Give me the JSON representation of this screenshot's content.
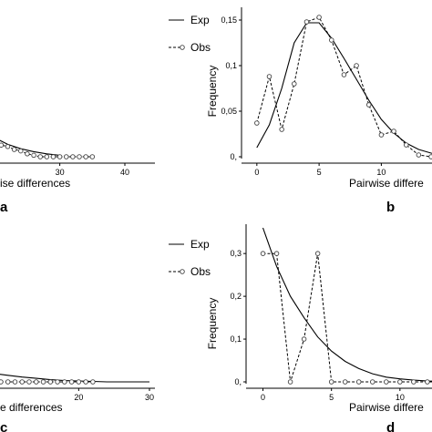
{
  "chart_data": [
    {
      "id": "a",
      "type": "line",
      "panel_label": "a",
      "xlabel": "Pairwise differences",
      "ylabel": "",
      "xticks": [
        {
          "v": 20,
          "label": "20"
        },
        {
          "v": 30,
          "label": "30"
        },
        {
          "v": 40,
          "label": "40"
        }
      ],
      "yticks": [],
      "xlim": [
        -3,
        40
      ],
      "ylim": [
        0,
        0.1
      ],
      "legend": [
        "Exp",
        "Obs"
      ],
      "series": [
        {
          "name": "Exp",
          "style": "solid",
          "x": [
            0,
            2,
            4,
            6,
            8,
            10,
            12,
            14,
            16,
            18,
            20,
            22,
            24,
            26,
            28,
            30
          ],
          "y": [
            0.1,
            0.087,
            0.075,
            0.064,
            0.054,
            0.045,
            0.037,
            0.03,
            0.024,
            0.018,
            0.013,
            0.0085,
            0.0055,
            0.0035,
            0.002,
            0.001
          ]
        },
        {
          "name": "Obs",
          "style": "dashed",
          "x": [
            14,
            15,
            16,
            17,
            18,
            19,
            20,
            21,
            22,
            23,
            24,
            25,
            26,
            27,
            28,
            29,
            30,
            31,
            32,
            33,
            34,
            35
          ],
          "y": [
            0.058,
            0.05,
            0.041,
            0.043,
            0.034,
            0.026,
            0.01,
            0.008,
            0.007,
            0.005,
            0.004,
            0.002,
            0.001,
            0,
            0,
            0,
            0,
            0,
            0,
            0,
            0,
            0
          ]
        }
      ]
    },
    {
      "id": "b",
      "type": "line",
      "panel_label": "b",
      "xlabel": "Pairwise differences",
      "ylabel": "Frequency",
      "xticks": [
        {
          "v": 0,
          "label": "0"
        },
        {
          "v": 5,
          "label": "5"
        },
        {
          "v": 10,
          "label": "10"
        }
      ],
      "yticks": [
        {
          "v": 0,
          "label": "0,"
        },
        {
          "v": 0.05,
          "label": "0,05"
        },
        {
          "v": 0.1,
          "label": "0,1"
        },
        {
          "v": 0.15,
          "label": "0,15"
        }
      ],
      "xlim": [
        -0.5,
        17
      ],
      "ylim": [
        0,
        0.16
      ],
      "legend": [],
      "series": [
        {
          "name": "Exp",
          "style": "solid",
          "x": [
            0,
            1,
            2,
            3,
            4,
            5,
            6,
            7,
            8,
            9,
            10,
            11,
            12,
            13,
            14,
            15,
            16
          ],
          "y": [
            0.01,
            0.035,
            0.075,
            0.125,
            0.147,
            0.147,
            0.13,
            0.108,
            0.085,
            0.062,
            0.041,
            0.026,
            0.015,
            0.008,
            0.004,
            0.002,
            0.001
          ]
        },
        {
          "name": "Obs",
          "style": "dashed",
          "x": [
            0,
            1,
            2,
            3,
            4,
            5,
            6,
            7,
            8,
            9,
            10,
            11,
            12,
            13,
            14,
            15,
            16
          ],
          "y": [
            0.037,
            0.088,
            0.03,
            0.08,
            0.148,
            0.153,
            0.128,
            0.09,
            0.1,
            0.057,
            0.024,
            0.028,
            0.013,
            0.002,
            0,
            0,
            0
          ]
        }
      ]
    },
    {
      "id": "c",
      "type": "line",
      "panel_label": "c",
      "xlabel": "Pairwise differences",
      "ylabel": "",
      "xticks": [
        {
          "v": 20,
          "label": "20"
        },
        {
          "v": 30,
          "label": "30"
        }
      ],
      "yticks": [],
      "xlim": [
        -4,
        30
      ],
      "ylim": [
        0,
        0.35
      ],
      "legend": [
        "Exp",
        "Obs"
      ],
      "series": [
        {
          "name": "Exp",
          "style": "solid",
          "x": [
            0,
            2,
            4,
            6,
            8,
            10,
            12,
            14,
            16,
            18,
            20,
            22,
            24,
            26,
            28,
            30
          ],
          "y": [
            0.05,
            0.04,
            0.032,
            0.025,
            0.019,
            0.015,
            0.011,
            0.008,
            0.005,
            0.003,
            0.002,
            0.001,
            0,
            0,
            0,
            0
          ]
        },
        {
          "name": "Obs",
          "style": "dashed",
          "x": [
            0,
            1,
            2,
            3,
            4,
            5,
            6,
            7,
            8,
            9,
            10,
            11,
            12,
            13,
            14,
            15,
            16,
            17,
            18,
            19,
            20,
            21,
            22
          ],
          "y": [
            0.085,
            0.095,
            0.11,
            0.09,
            0.07,
            0,
            0,
            0,
            0,
            0,
            0,
            0,
            0,
            0,
            0,
            0,
            0,
            0,
            0,
            0,
            0,
            0,
            0
          ]
        }
      ]
    },
    {
      "id": "d",
      "type": "line",
      "panel_label": "d",
      "xlabel": "Pairwise differences",
      "ylabel": "Frequency",
      "xticks": [
        {
          "v": 0,
          "label": "0"
        },
        {
          "v": 5,
          "label": "5"
        },
        {
          "v": 10,
          "label": "10"
        }
      ],
      "yticks": [
        {
          "v": 0,
          "label": "0,"
        },
        {
          "v": 0.1,
          "label": "0,1"
        },
        {
          "v": 0.2,
          "label": "0,2"
        },
        {
          "v": 0.3,
          "label": "0,3"
        }
      ],
      "xlim": [
        -0.5,
        15
      ],
      "ylim": [
        0,
        0.36
      ],
      "legend": [],
      "series": [
        {
          "name": "Exp",
          "style": "solid",
          "x": [
            0,
            1,
            2,
            3,
            4,
            5,
            6,
            7,
            8,
            9,
            10,
            11,
            12,
            13,
            14,
            15
          ],
          "y": [
            0.36,
            0.27,
            0.2,
            0.15,
            0.105,
            0.072,
            0.048,
            0.031,
            0.019,
            0.011,
            0.007,
            0.004,
            0.002,
            0.001,
            0,
            0
          ]
        },
        {
          "name": "Obs",
          "style": "dashed",
          "x": [
            0,
            1,
            2,
            3,
            4,
            5,
            6,
            7,
            8,
            9,
            10,
            11,
            12,
            13,
            14,
            15
          ],
          "y": [
            0.3,
            0.3,
            0,
            0.1,
            0.3,
            0,
            0,
            0,
            0,
            0,
            0,
            0,
            0,
            0,
            0,
            0
          ]
        }
      ]
    }
  ]
}
